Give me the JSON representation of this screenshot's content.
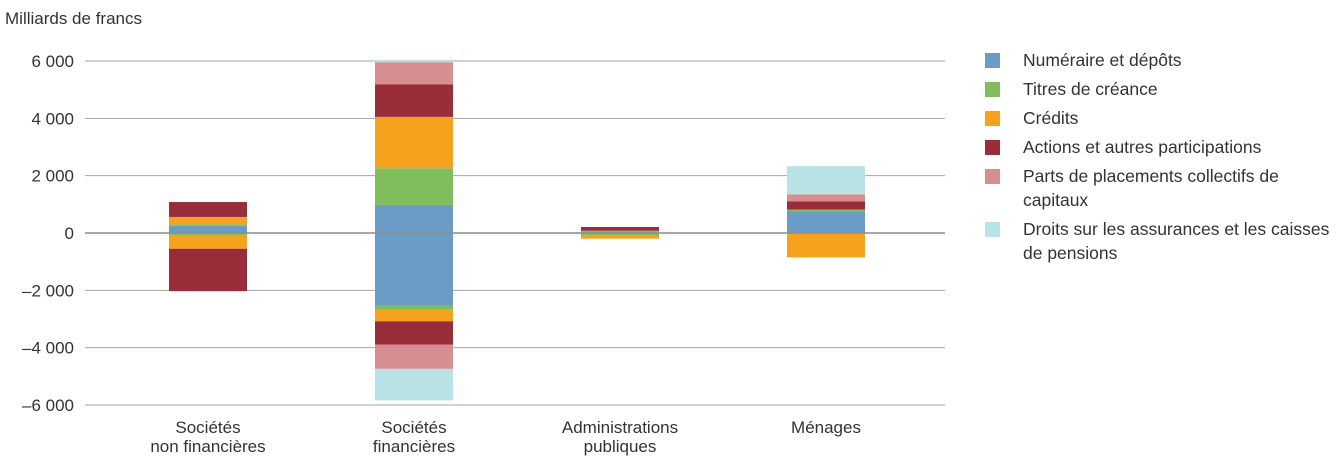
{
  "chart_data": {
    "type": "bar",
    "stacked": true,
    "ylabel": "Milliards de francs",
    "ylim": [
      -6000,
      6000
    ],
    "yticks": [
      {
        "value": 6000,
        "label": "6 000"
      },
      {
        "value": 4000,
        "label": "4 000"
      },
      {
        "value": 2000,
        "label": "2 000"
      },
      {
        "value": 0,
        "label": "0"
      },
      {
        "value": -2000,
        "label": "–2 000"
      },
      {
        "value": -4000,
        "label": "–4 000"
      },
      {
        "value": -6000,
        "label": "–6 000"
      }
    ],
    "grid": true,
    "legend_position": "right",
    "categories": [
      [
        "Sociétés",
        "non financières"
      ],
      [
        "Sociétés",
        "financières"
      ],
      [
        "Administrations",
        "publiques"
      ],
      [
        "Ménages"
      ]
    ],
    "series": [
      {
        "name": "Numéraire et dépôts",
        "color": "#6a9cc7",
        "positive": [
          250,
          980,
          0,
          750
        ],
        "negative": [
          0,
          -2530,
          0,
          0
        ]
      },
      {
        "name": "Titres de créance",
        "color": "#80be5b",
        "positive": [
          50,
          1280,
          80,
          70
        ],
        "negative": [
          -90,
          -150,
          -70,
          0
        ]
      },
      {
        "name": "Crédits",
        "color": "#f6a21e",
        "positive": [
          260,
          1790,
          0,
          0
        ],
        "negative": [
          -460,
          -400,
          -130,
          -850
        ]
      },
      {
        "name": "Actions et autres participations",
        "color": "#9a2d3a",
        "positive": [
          520,
          1130,
          130,
          280
        ],
        "negative": [
          -1480,
          -810,
          0,
          0
        ]
      },
      {
        "name": "Parts de placements collectifs de capitaux",
        "color": "#d68e91",
        "positive": [
          0,
          780,
          0,
          250
        ],
        "negative": [
          0,
          -850,
          0,
          0
        ]
      },
      {
        "name": "Droits sur les assurances et les caisses de pensions",
        "color": "#b8e2e6",
        "positive": [
          0,
          80,
          0,
          980
        ],
        "negative": [
          0,
          -1100,
          0,
          0
        ]
      }
    ]
  },
  "legend": {
    "items": [
      {
        "label": "Numéraire et dépôts",
        "color": "#6a9cc7"
      },
      {
        "label": "Titres de créance",
        "color": "#80be5b"
      },
      {
        "label": "Crédits",
        "color": "#f6a21e"
      },
      {
        "label": "Actions et autres participations",
        "color": "#9a2d3a"
      },
      {
        "label": "Parts de placements collectifs de capitaux",
        "color": "#d68e91"
      },
      {
        "label": "Droits sur les assurances et les caisses de pensions",
        "color": "#b8e2e6"
      }
    ]
  }
}
